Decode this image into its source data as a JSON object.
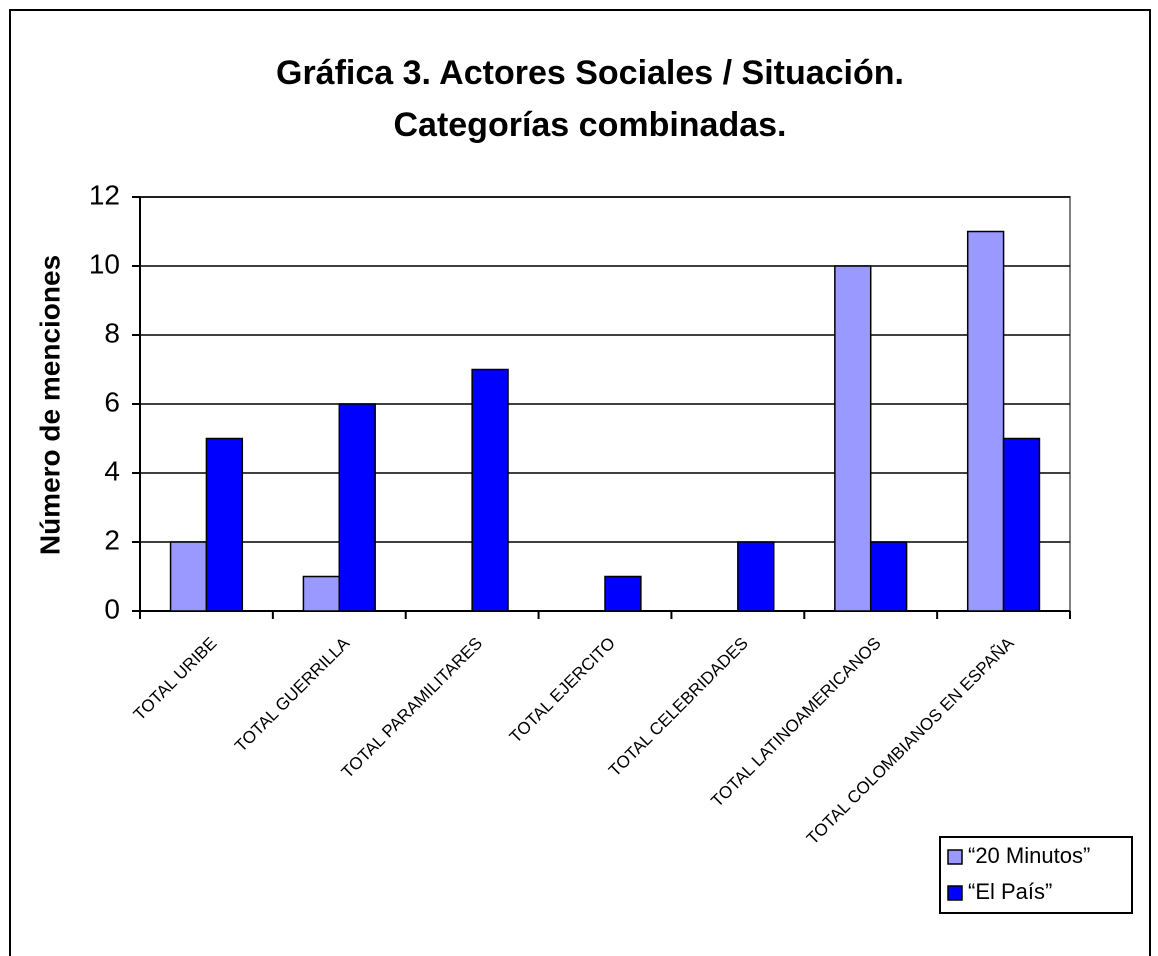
{
  "chart_data": {
    "type": "bar",
    "title": "Gráfica 3. Actores Sociales / Situación.",
    "subtitle": "Categorías combinadas.",
    "y_label": "Número de menciones",
    "categories": [
      "TOTAL URIBE",
      "TOTAL GUERRILLA",
      "TOTAL PARAMILITARES",
      "TOTAL EJERCITO",
      "TOTAL CELEBRIDADES",
      "TOTAL LATINOAMERICANOS",
      "TOTAL COLOMBIANOS EN ESPAÑA"
    ],
    "series": [
      {
        "name": "“20 Minutos”",
        "color": "#9999ff",
        "values": [
          2,
          1,
          0,
          0,
          0,
          10,
          11
        ]
      },
      {
        "name": "“El País”",
        "color": "#0000ff",
        "values": [
          5,
          6,
          7,
          1,
          2,
          2,
          5
        ]
      }
    ],
    "ylim": [
      0,
      12
    ],
    "yticks": [
      0,
      2,
      4,
      6,
      8,
      10,
      12
    ],
    "grid": true,
    "legend": "bottom-right"
  }
}
